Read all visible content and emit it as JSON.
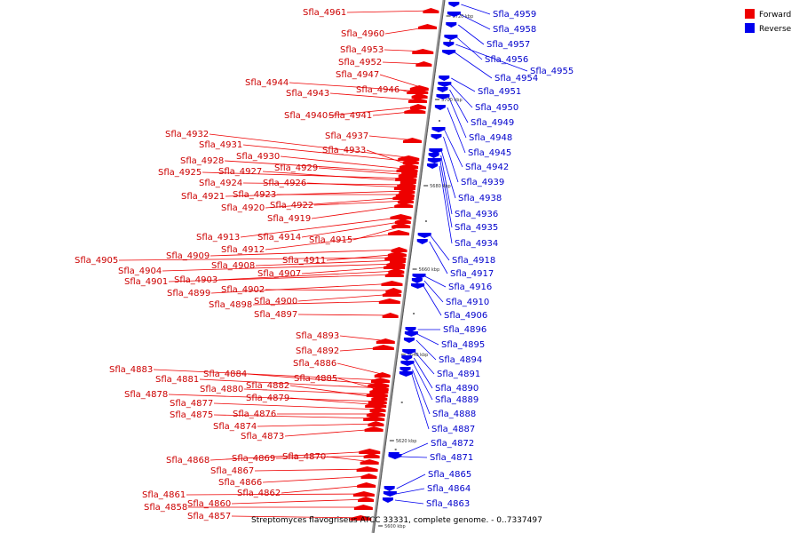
{
  "legend": {
    "forward": "Forward",
    "reverse": "Reverse"
  },
  "caption": "Streptomyces flavogriseus ATCC 33331, complete genome. - 0..7337497",
  "colors": {
    "forward": "#ee0000",
    "reverse": "#0000ee",
    "axis": "#777777"
  },
  "ticks": [
    "5720 kbp",
    "5700 kbp",
    "5680 kbp",
    "5660 kbp",
    "5640 kbp",
    "5620 kbp",
    "5600 kbp"
  ],
  "forward_genes": [
    "Sfla_4961",
    "Sfla_4960",
    "Sfla_4953",
    "Sfla_4952",
    "Sfla_4947",
    "Sfla_4944",
    "Sfla_4946",
    "Sfla_4943",
    "Sfla_4941",
    "Sfla_4940",
    "Sfla_4937",
    "Sfla_4932",
    "Sfla_4931",
    "Sfla_4933",
    "Sfla_4930",
    "Sfla_4928",
    "Sfla_4929",
    "Sfla_4925",
    "Sfla_4927",
    "Sfla_4924",
    "Sfla_4926",
    "Sfla_4921",
    "Sfla_4923",
    "Sfla_4920",
    "Sfla_4922",
    "Sfla_4919",
    "Sfla_4913",
    "Sfla_4914",
    "Sfla_4915",
    "Sfla_4912",
    "Sfla_4909",
    "Sfla_4911",
    "Sfla_4905",
    "Sfla_4908",
    "Sfla_4904",
    "Sfla_4907",
    "Sfla_4903",
    "Sfla_4901",
    "Sfla_4899",
    "Sfla_4902",
    "Sfla_4900",
    "Sfla_4898",
    "Sfla_4897",
    "Sfla_4893",
    "Sfla_4892",
    "Sfla_4886",
    "Sfla_4883",
    "Sfla_4884",
    "Sfla_4881",
    "Sfla_4885",
    "Sfla_4880",
    "Sfla_4882",
    "Sfla_4878",
    "Sfla_4879",
    "Sfla_4877",
    "Sfla_4876",
    "Sfla_4875",
    "Sfla_4874",
    "Sfla_4873",
    "Sfla_4868",
    "Sfla_4869",
    "Sfla_4870",
    "Sfla_4867",
    "Sfla_4866",
    "Sfla_4862",
    "Sfla_4861",
    "Sfla_4860",
    "Sfla_4858",
    "Sfla_4857"
  ],
  "reverse_genes": [
    "Sfla_4959",
    "Sfla_4958",
    "Sfla_4957",
    "Sfla_4956",
    "Sfla_4955",
    "Sfla_4954",
    "Sfla_4951",
    "Sfla_4950",
    "Sfla_4949",
    "Sfla_4948",
    "Sfla_4945",
    "Sfla_4942",
    "Sfla_4939",
    "Sfla_4938",
    "Sfla_4936",
    "Sfla_4935",
    "Sfla_4934",
    "Sfla_4918",
    "Sfla_4917",
    "Sfla_4916",
    "Sfla_4910",
    "Sfla_4906",
    "Sfla_4896",
    "Sfla_4895",
    "Sfla_4894",
    "Sfla_4891",
    "Sfla_4890",
    "Sfla_4889",
    "Sfla_4888",
    "Sfla_4887",
    "Sfla_4872",
    "Sfla_4871",
    "Sfla_4865",
    "Sfla_4864",
    "Sfla_4863"
  ]
}
